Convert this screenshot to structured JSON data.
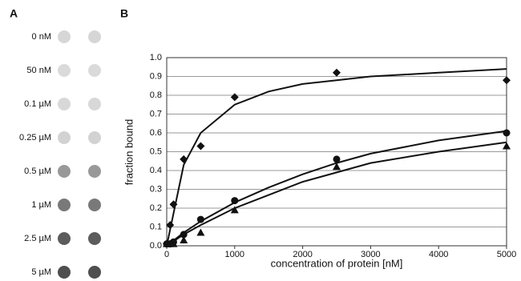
{
  "panel_a": {
    "label": "A",
    "rows": [
      "0 nM",
      "50 nM",
      "0.1 µM",
      "0.25 µM",
      "0.5 µM",
      "1 µM",
      "2.5 µM",
      "5 µM"
    ],
    "spot_colors": [
      "#d2d2d2",
      "#d6d6d6",
      "#d4d4d4",
      "#cdcdcd",
      "#8e8e8e",
      "#6a6a6a",
      "#4a4a4a",
      "#3c3c3c"
    ]
  },
  "chart_data": {
    "type": "scatter",
    "panel_label": "B",
    "xlabel": "concentration of protein [nM]",
    "ylabel": "fraction bound",
    "xlim": [
      0,
      5000
    ],
    "ylim": [
      0,
      1
    ],
    "xticks": [
      0,
      1000,
      2000,
      3000,
      4000,
      5000
    ],
    "yticks": [
      {
        "value": 0,
        "label": "0.0"
      },
      0.1,
      0.2,
      0.3,
      0.4,
      0.5,
      0.6,
      0.7,
      0.8,
      0.9,
      {
        "value": 1,
        "label": "1.0"
      }
    ],
    "grid": true,
    "x": [
      0,
      50,
      100,
      250,
      500,
      1000,
      2500,
      5000
    ],
    "fit_x": [
      0,
      250,
      500,
      1000,
      1500,
      2000,
      2500,
      3000,
      4000,
      5000
    ],
    "series": [
      {
        "marker": "diamond",
        "color": "#111111",
        "values": [
          0.01,
          0.11,
          0.22,
          0.46,
          0.53,
          0.79,
          0.92,
          0.88
        ],
        "fit": [
          0,
          0.43,
          0.6,
          0.75,
          0.82,
          0.86,
          0.88,
          0.9,
          0.92,
          0.94
        ]
      },
      {
        "marker": "circle",
        "color": "#111111",
        "values": [
          0.01,
          0.01,
          0.02,
          0.06,
          0.14,
          0.24,
          0.46,
          0.6
        ],
        "fit": [
          0,
          0.07,
          0.13,
          0.23,
          0.31,
          0.38,
          0.44,
          0.49,
          0.56,
          0.61
        ]
      },
      {
        "marker": "triangle",
        "color": "#111111",
        "values": [
          0.01,
          0.01,
          0.01,
          0.03,
          0.07,
          0.19,
          0.42,
          0.53
        ],
        "fit": [
          0,
          0.06,
          0.11,
          0.2,
          0.27,
          0.34,
          0.39,
          0.44,
          0.5,
          0.55
        ]
      }
    ]
  }
}
